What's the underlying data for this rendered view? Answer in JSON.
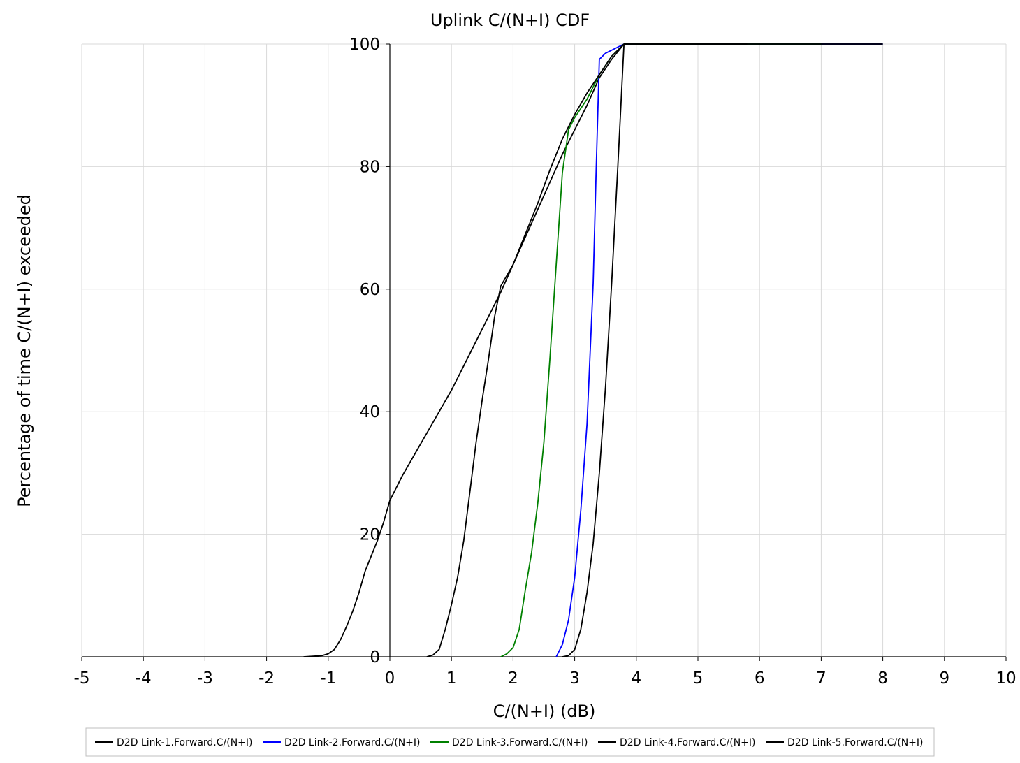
{
  "chart_data": {
    "type": "line",
    "title": "Uplink C/(N+I) CDF",
    "xlabel": "C/(N+I) (dB)",
    "ylabel": "Percentage of time C/(N+I) exceeded",
    "xlim": [
      -5,
      10
    ],
    "ylim": [
      0,
      100
    ],
    "xticks": [
      "-5",
      "-4",
      "-3",
      "-2",
      "-1",
      "0",
      "1",
      "2",
      "3",
      "4",
      "5",
      "6",
      "7",
      "8",
      "9",
      "10"
    ],
    "yticks": [
      "0",
      "20",
      "40",
      "60",
      "80",
      "100"
    ],
    "grid": true,
    "legend_position": "bottom",
    "series": [
      {
        "name": "D2D Link-1.Forward.C/(N+I)",
        "color": "#000000",
        "x": [
          -1.4,
          -1.1,
          -1.0,
          -0.9,
          -0.8,
          -0.7,
          -0.6,
          -0.5,
          -0.4,
          -0.3,
          -0.2,
          -0.1,
          0.0,
          0.2,
          0.4,
          0.6,
          0.8,
          1.0,
          1.2,
          1.4,
          1.6,
          1.8,
          2.0,
          2.2,
          2.4,
          2.6,
          2.8,
          3.0,
          3.2,
          3.4,
          3.6,
          3.8,
          5.0,
          6.0,
          7.0,
          8.0
        ],
        "y": [
          0,
          0.2,
          0.5,
          1.2,
          2.8,
          5.0,
          7.5,
          10.5,
          14.0,
          16.5,
          19.0,
          22.0,
          25.5,
          29.5,
          33.0,
          36.5,
          40.0,
          43.5,
          47.5,
          51.5,
          55.5,
          59.5,
          64.0,
          68.5,
          73.0,
          77.5,
          82.0,
          86.0,
          90.0,
          94.5,
          97.5,
          100,
          100,
          100,
          100,
          100
        ]
      },
      {
        "name": "D2D Link-2.Forward.C/(N+I)",
        "color": "#0000ff",
        "x": [
          2.7,
          2.8,
          2.9,
          3.0,
          3.1,
          3.2,
          3.3,
          3.35,
          3.4,
          3.5,
          3.6,
          3.7,
          3.8,
          5.0,
          6.0,
          7.0,
          8.0
        ],
        "y": [
          0,
          2,
          6,
          13,
          24,
          38,
          61,
          80,
          97.5,
          98.5,
          99,
          99.5,
          100,
          100,
          100,
          100,
          100
        ]
      },
      {
        "name": "D2D Link-3.Forward.C/(N+I)",
        "color": "#008000",
        "x": [
          1.8,
          1.9,
          2.0,
          2.1,
          2.2,
          2.3,
          2.4,
          2.5,
          2.6,
          2.7,
          2.8,
          2.9,
          3.0,
          3.2,
          3.4,
          3.6,
          3.8,
          5.0,
          5.8,
          7.0
        ],
        "y": [
          0,
          0.5,
          1.5,
          4.5,
          11,
          17,
          25,
          35,
          49,
          64,
          79,
          86,
          88,
          91,
          95,
          98,
          100,
          100,
          100,
          100
        ]
      },
      {
        "name": "D2D Link-4.Forward.C/(N+I)",
        "color": "#000000",
        "x": [
          0.6,
          0.7,
          0.8,
          0.9,
          1.0,
          1.1,
          1.2,
          1.3,
          1.4,
          1.5,
          1.6,
          1.7,
          1.8,
          2.0,
          2.2,
          2.4,
          2.6,
          2.8,
          3.0,
          3.2,
          3.4,
          3.6,
          3.8,
          5.0,
          5.8
        ],
        "y": [
          0,
          0.3,
          1.2,
          4.5,
          8.5,
          13,
          19,
          27,
          35,
          42,
          48.5,
          55.5,
          60.5,
          64,
          69,
          74,
          79.5,
          84.5,
          88.5,
          92,
          95,
          98,
          100,
          100,
          100
        ]
      },
      {
        "name": "D2D Link-5.Forward.C/(N+I)",
        "color": "#000000",
        "x": [
          2.8,
          2.9,
          3.0,
          3.1,
          3.2,
          3.3,
          3.4,
          3.5,
          3.6,
          3.7,
          3.8,
          5.0,
          6.0,
          7.0,
          8.0
        ],
        "y": [
          0,
          0.2,
          1.2,
          4.5,
          10.5,
          18.5,
          30,
          44,
          61,
          80,
          100,
          100,
          100,
          100,
          100
        ]
      }
    ]
  }
}
